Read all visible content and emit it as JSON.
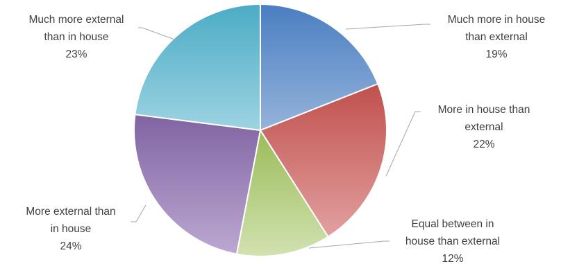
{
  "chart_data": {
    "type": "pie",
    "title": "",
    "slices": [
      {
        "name": "Much more in house than external",
        "label_lines": [
          "Much more in house",
          "than external"
        ],
        "pct_label": "19%",
        "value": 19,
        "colors": [
          "#4a7ec2",
          "#95b3da"
        ]
      },
      {
        "name": "More in house than external",
        "label_lines": [
          "More in house than",
          "external"
        ],
        "pct_label": "22%",
        "value": 22,
        "colors": [
          "#c0504d",
          "#e2a09f"
        ]
      },
      {
        "name": "Equal between in house than external",
        "label_lines": [
          "Equal between in",
          "house than external"
        ],
        "pct_label": "12%",
        "value": 12,
        "colors": [
          "#9bbb59",
          "#d1e2b0"
        ]
      },
      {
        "name": "More external than in house",
        "label_lines": [
          "More external than",
          "in house"
        ],
        "pct_label": "24%",
        "value": 24,
        "colors": [
          "#8064a2",
          "#bca8d2"
        ]
      },
      {
        "name": "Much more external than in house",
        "label_lines": [
          "Much more external",
          "than in house"
        ],
        "pct_label": "23%",
        "value": 23,
        "colors": [
          "#4bacc6",
          "#9dd3e1"
        ]
      }
    ]
  }
}
